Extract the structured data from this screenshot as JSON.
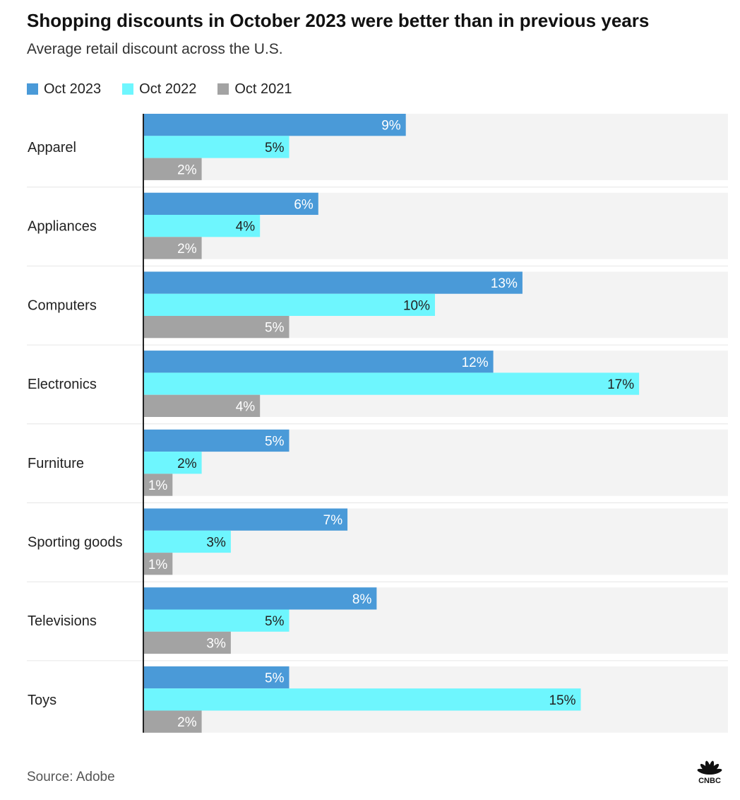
{
  "title": "Shopping discounts in October 2023 were better than in previous years",
  "subtitle": "Average retail discount across the U.S.",
  "source": "Source: Adobe",
  "logo_text": "CNBC",
  "colors": {
    "panel_bg": "#f3f3f3",
    "separator": "#e6e6e6",
    "axis": "#222222",
    "label_dark": "#222222",
    "label_light": "#ffffff"
  },
  "chart_data": {
    "type": "bar",
    "orientation": "horizontal",
    "categories": [
      "Apparel",
      "Appliances",
      "Computers",
      "Electronics",
      "Furniture",
      "Sporting goods",
      "Televisions",
      "Toys"
    ],
    "series": [
      {
        "name": "Oct 2023",
        "color": "#4a9ad8",
        "values": [
          9,
          6,
          13,
          12,
          5,
          7,
          8,
          5
        ],
        "labels": [
          "9%",
          "6%",
          "13%",
          "12%",
          "5%",
          "7%",
          "8%",
          "5%"
        ]
      },
      {
        "name": "Oct 2022",
        "color": "#6ef6fe",
        "values": [
          5,
          4,
          10,
          17,
          2,
          3,
          5,
          15
        ],
        "labels": [
          "5%",
          "4%",
          "10%",
          "17%",
          "2%",
          "3%",
          "5%",
          "15%"
        ]
      },
      {
        "name": "Oct 2021",
        "color": "#a3a3a3",
        "values": [
          2,
          2,
          5,
          4,
          1,
          1,
          3,
          2
        ],
        "labels": [
          "2%",
          "2%",
          "5%",
          "4%",
          "1%",
          "1%",
          "3%",
          "2%"
        ]
      }
    ],
    "xlim": [
      0,
      20
    ],
    "legend_position": "top-left",
    "grid": false,
    "unit": "%"
  }
}
